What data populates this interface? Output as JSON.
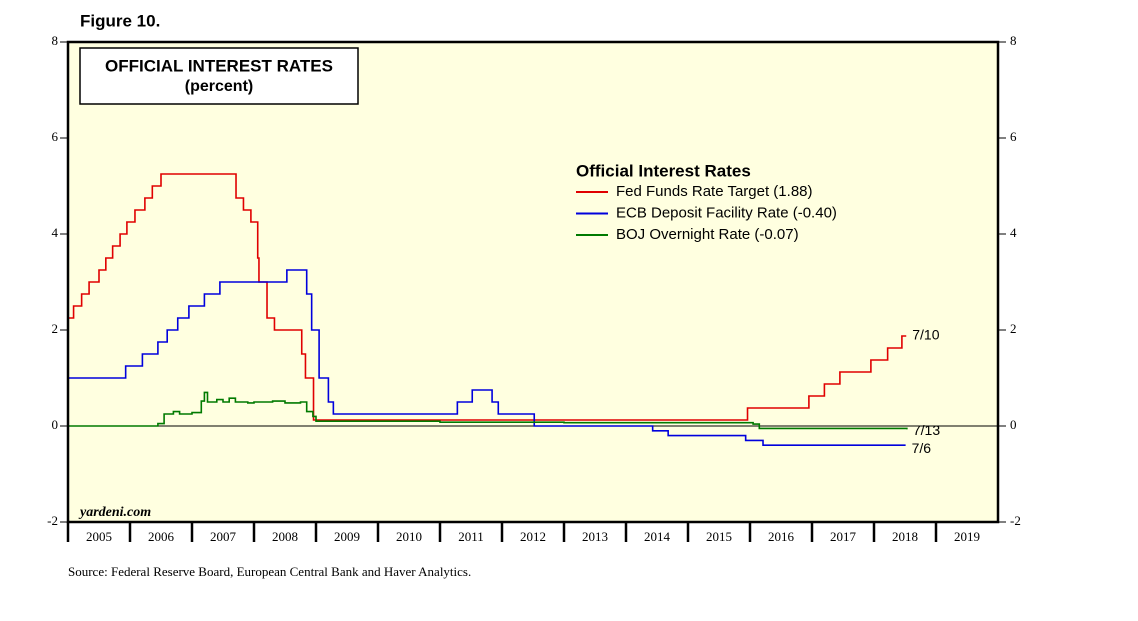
{
  "chart_data": {
    "type": "line",
    "drawstyle": "steps-post",
    "figure_label": "Figure 10.",
    "title": "OFFICIAL INTEREST RATES",
    "subtitle": "(percent)",
    "legend_title": "Official Interest Rates",
    "watermark": "yardeni.com",
    "source": "Source: Federal Reserve Board, European Central Bank and Haver Analytics.",
    "xlim": [
      2005,
      2020
    ],
    "xticks": [
      2005,
      2006,
      2007,
      2008,
      2009,
      2010,
      2011,
      2012,
      2013,
      2014,
      2015,
      2016,
      2017,
      2018,
      2019
    ],
    "ylim": [
      -2,
      8
    ],
    "yticks": [
      -2,
      0,
      2,
      4,
      6,
      8
    ],
    "y2lim": [
      -2,
      8
    ],
    "y2ticks": [
      -2,
      0,
      2,
      4,
      6,
      8
    ],
    "background": "#ffffe0",
    "series": [
      {
        "name": "Fed Funds Rate Target (1.88)",
        "color": "#e00000",
        "end_label": "7/10",
        "x": [
          2005.0,
          2005.09,
          2005.22,
          2005.34,
          2005.5,
          2005.61,
          2005.72,
          2005.84,
          2005.95,
          2006.08,
          2006.24,
          2006.36,
          2006.5,
          2007.71,
          2007.83,
          2007.95,
          2008.06,
          2008.08,
          2008.21,
          2008.33,
          2008.77,
          2008.83,
          2008.96,
          2015.96,
          2016.95,
          2017.2,
          2017.45,
          2017.95,
          2018.22,
          2018.45,
          2018.52
        ],
        "values": [
          2.25,
          2.5,
          2.75,
          3.0,
          3.25,
          3.5,
          3.75,
          4.0,
          4.25,
          4.5,
          4.75,
          5.0,
          5.25,
          4.75,
          4.5,
          4.25,
          3.5,
          3.0,
          2.25,
          2.0,
          1.5,
          1.0,
          0.125,
          0.375,
          0.625,
          0.875,
          1.125,
          1.375,
          1.625,
          1.875,
          1.875
        ]
      },
      {
        "name": "ECB Deposit Facility Rate (-0.40)",
        "color": "#0000dd",
        "end_label": "7/6",
        "x": [
          2005.0,
          2005.93,
          2006.2,
          2006.45,
          2006.6,
          2006.77,
          2006.95,
          2007.2,
          2007.45,
          2008.53,
          2008.85,
          2008.93,
          2009.05,
          2009.2,
          2009.28,
          2011.28,
          2011.52,
          2011.84,
          2011.94,
          2012.52,
          2014.43,
          2014.68,
          2015.93,
          2016.21,
          2018.51
        ],
        "values": [
          1.0,
          1.25,
          1.5,
          1.75,
          2.0,
          2.25,
          2.5,
          2.75,
          3.0,
          3.25,
          2.75,
          2.0,
          1.0,
          0.5,
          0.25,
          0.5,
          0.75,
          0.5,
          0.25,
          0.0,
          -0.1,
          -0.2,
          -0.3,
          -0.4,
          -0.4
        ]
      },
      {
        "name": "BOJ Overnight Rate (-0.07)",
        "color": "#007a00",
        "end_label": "7/13",
        "x": [
          2005.0,
          2006.45,
          2006.55,
          2006.7,
          2006.8,
          2007.0,
          2007.15,
          2007.2,
          2007.25,
          2007.4,
          2007.5,
          2007.6,
          2007.7,
          2007.9,
          2008.0,
          2008.3,
          2008.5,
          2008.75,
          2008.85,
          2008.95,
          2009.0,
          2010.0,
          2011.0,
          2013.0,
          2016.05,
          2016.15,
          2017.0,
          2018.53
        ],
        "values": [
          0.0,
          0.05,
          0.25,
          0.3,
          0.25,
          0.28,
          0.52,
          0.7,
          0.5,
          0.55,
          0.5,
          0.58,
          0.5,
          0.48,
          0.5,
          0.52,
          0.48,
          0.5,
          0.3,
          0.2,
          0.1,
          0.1,
          0.08,
          0.07,
          0.04,
          -0.05,
          -0.05,
          -0.07
        ]
      }
    ]
  }
}
